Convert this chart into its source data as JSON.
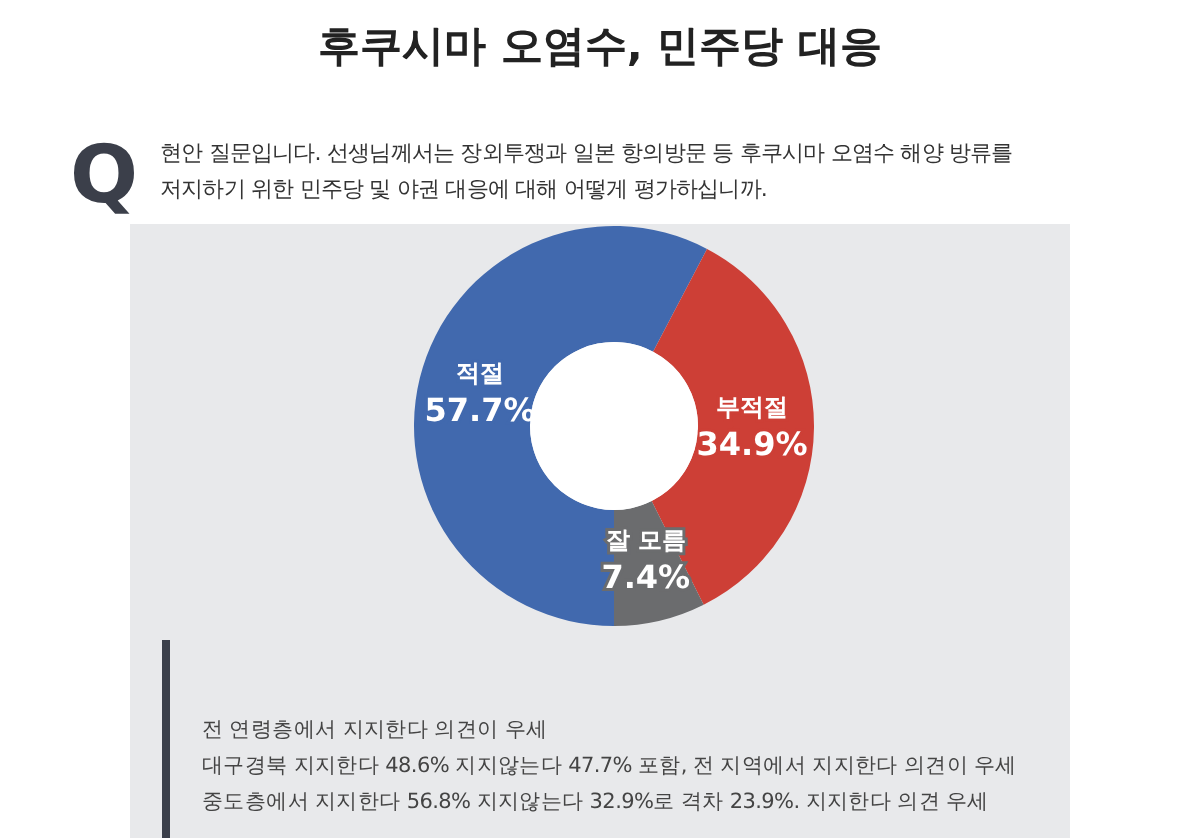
{
  "chart_data": {
    "type": "donut",
    "title": "후쿠시마 오염수, 민주당 대응",
    "subtitle": "현안 질문입니다. 선생님께서는 장외투쟁과 일본 항의방문 등 후쿠시마 오염수 해양 방류를 저지하기 위한 민주당 및 야권 대응에 대해 어떻게 평가하십니까.",
    "categories": [
      "적절",
      "부적절",
      "잘 모름"
    ],
    "values": [
      57.7,
      34.9,
      7.4
    ],
    "colors": [
      "#4169ae",
      "#cd3f36",
      "#6b6c6e"
    ],
    "value_labels": [
      "57.7%",
      "34.9%",
      "7.4%"
    ],
    "annotations": [
      "Q",
      "전 연령층에서 지지한다 의견이 우세",
      "대구경북 지지한다 48.6% 지지않는다 47.7% 포함, 전 지역에서 지지한다 의견이 우세",
      "중도층에서 지지한다 56.8% 지지않는다 32.9%로 격차 23.9%. 지지한다 의견 우세"
    ]
  }
}
